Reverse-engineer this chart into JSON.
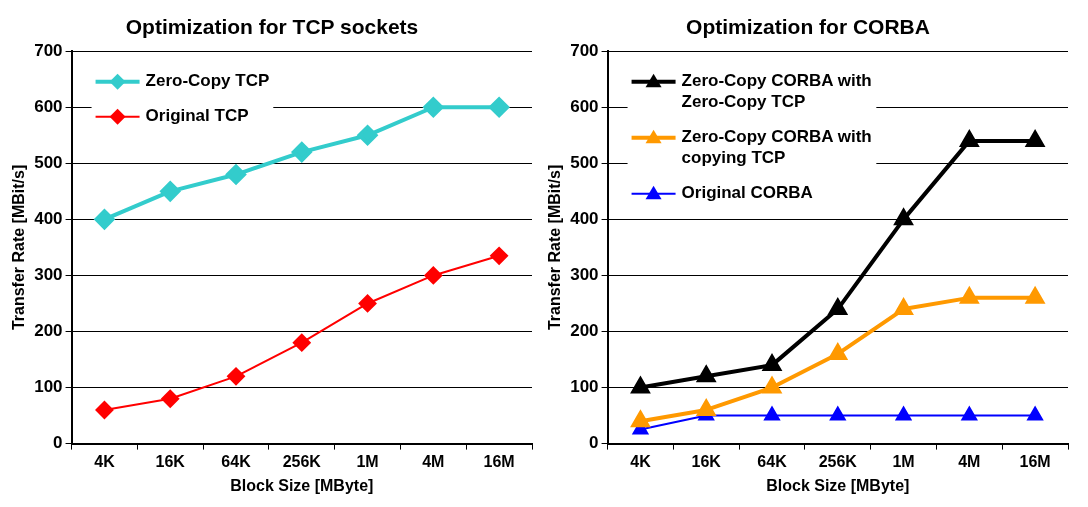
{
  "chart_data": [
    {
      "type": "line",
      "title": "Optimization for TCP sockets",
      "xlabel": "Block Size [MByte]",
      "ylabel": "Transfer Rate [MBit/s]",
      "categories": [
        "4K",
        "16K",
        "64K",
        "256K",
        "1M",
        "4M",
        "16M"
      ],
      "ylim": [
        0,
        700
      ],
      "yticks": [
        0,
        100,
        200,
        300,
        400,
        500,
        600,
        700
      ],
      "grid": "y",
      "legend": "top left",
      "series": [
        {
          "name": "Zero-Copy TCP",
          "color": "#33cccc",
          "marker": "diamond",
          "values": [
            400,
            450,
            480,
            520,
            550,
            600,
            600
          ]
        },
        {
          "name": "Original TCP",
          "color": "#ff0000",
          "marker": "diamond",
          "values": [
            60,
            80,
            120,
            180,
            250,
            300,
            335
          ]
        }
      ]
    },
    {
      "type": "line",
      "title": "Optimization for CORBA",
      "xlabel": "Block Size [MByte]",
      "ylabel": "Transfer Rate [MBit/s]",
      "categories": [
        "4K",
        "16K",
        "64K",
        "256K",
        "1M",
        "4M",
        "16M"
      ],
      "ylim": [
        0,
        700
      ],
      "yticks": [
        0,
        100,
        200,
        300,
        400,
        500,
        600,
        700
      ],
      "grid": "y",
      "legend": "top left",
      "series": [
        {
          "name": "Zero-Copy CORBA with Zero-Copy TCP",
          "color": "#000000",
          "marker": "triangle",
          "values": [
            100,
            120,
            140,
            240,
            400,
            540,
            540
          ]
        },
        {
          "name": "Zero-Copy CORBA with copying TCP",
          "color": "#ff9900",
          "marker": "triangle",
          "values": [
            40,
            60,
            100,
            160,
            240,
            260,
            260
          ]
        },
        {
          "name": "Original CORBA",
          "color": "#0000ff",
          "marker": "triangle",
          "values": [
            25,
            50,
            50,
            50,
            50,
            50,
            50
          ]
        }
      ]
    }
  ]
}
